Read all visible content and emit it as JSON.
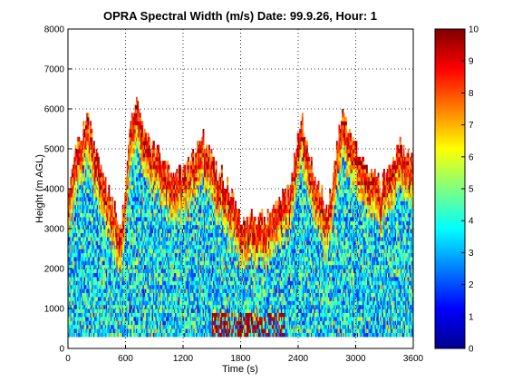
{
  "chart_data": {
    "type": "heatmap",
    "title": "OPRA Spectral Width (m/s)  Date: 99.9.26, Hour: 1",
    "xlabel": "Time (s)",
    "ylabel": "Height (m AGL)",
    "xlim": [
      0,
      3600
    ],
    "ylim": [
      0,
      8000
    ],
    "xticks": [
      "0",
      "600",
      "1200",
      "1800",
      "2400",
      "3000",
      "3600"
    ],
    "yticks": [
      "0",
      "1000",
      "2000",
      "3000",
      "4000",
      "5000",
      "6000",
      "7000",
      "8000"
    ],
    "grid": true,
    "colorbar": {
      "range": [
        0,
        10
      ],
      "ticks": [
        "0",
        "1",
        "2",
        "3",
        "4",
        "5",
        "6",
        "7",
        "8",
        "9",
        "10"
      ],
      "colormap": "jet"
    },
    "data_extent": {
      "time": [
        0,
        3600
      ],
      "height": [
        300,
        6400
      ],
      "echo_top_profile": [
        {
          "t": 0,
          "top": 3900
        },
        {
          "t": 100,
          "top": 5200
        },
        {
          "t": 200,
          "top": 5700
        },
        {
          "t": 300,
          "top": 4700
        },
        {
          "t": 400,
          "top": 3900
        },
        {
          "t": 550,
          "top": 3000
        },
        {
          "t": 650,
          "top": 5700
        },
        {
          "t": 720,
          "top": 6300
        },
        {
          "t": 800,
          "top": 5200
        },
        {
          "t": 950,
          "top": 4800
        },
        {
          "t": 1100,
          "top": 4200
        },
        {
          "t": 1250,
          "top": 4500
        },
        {
          "t": 1400,
          "top": 5300
        },
        {
          "t": 1500,
          "top": 4600
        },
        {
          "t": 1650,
          "top": 4100
        },
        {
          "t": 1800,
          "top": 3100
        },
        {
          "t": 1950,
          "top": 3300
        },
        {
          "t": 2100,
          "top": 3200
        },
        {
          "t": 2300,
          "top": 3900
        },
        {
          "t": 2420,
          "top": 5800
        },
        {
          "t": 2550,
          "top": 4400
        },
        {
          "t": 2700,
          "top": 3400
        },
        {
          "t": 2850,
          "top": 5800
        },
        {
          "t": 3050,
          "top": 4700
        },
        {
          "t": 3250,
          "top": 4000
        },
        {
          "t": 3450,
          "top": 5100
        },
        {
          "t": 3600,
          "top": 4600
        }
      ],
      "value_range_interior": [
        1.5,
        5.5
      ],
      "value_range_edges": [
        7,
        10
      ],
      "surface_band": {
        "height": [
          300,
          900
        ],
        "time": [
          1500,
          2250
        ],
        "value": 9.5
      }
    }
  }
}
